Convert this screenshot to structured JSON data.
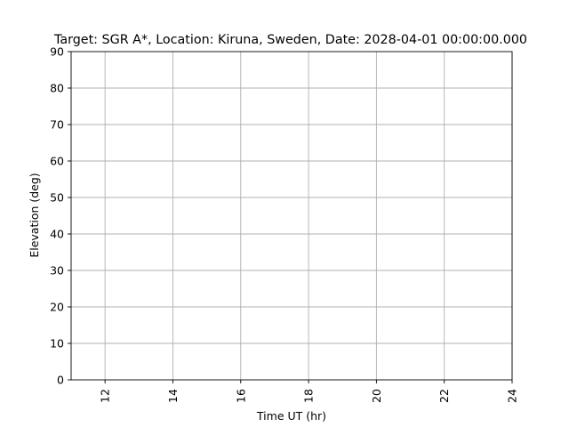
{
  "chart_data": {
    "type": "line",
    "title": "Target: SGR A*,  Location: Kiruna, Sweden, Date: 2028-04-01 00:00:00.000",
    "xlabel": "Time UT (hr)",
    "ylabel": "Elevation (deg)",
    "xlim": [
      11,
      24
    ],
    "ylim": [
      0,
      90
    ],
    "xticks": [
      12,
      14,
      16,
      18,
      20,
      22,
      24
    ],
    "yticks": [
      0,
      10,
      20,
      30,
      40,
      50,
      60,
      70,
      80,
      90
    ],
    "grid": true,
    "series": [
      {
        "x": [],
        "y": []
      }
    ],
    "colors": {
      "axis": "#000000",
      "grid": "#b0b0b0",
      "background": "#ffffff"
    }
  }
}
